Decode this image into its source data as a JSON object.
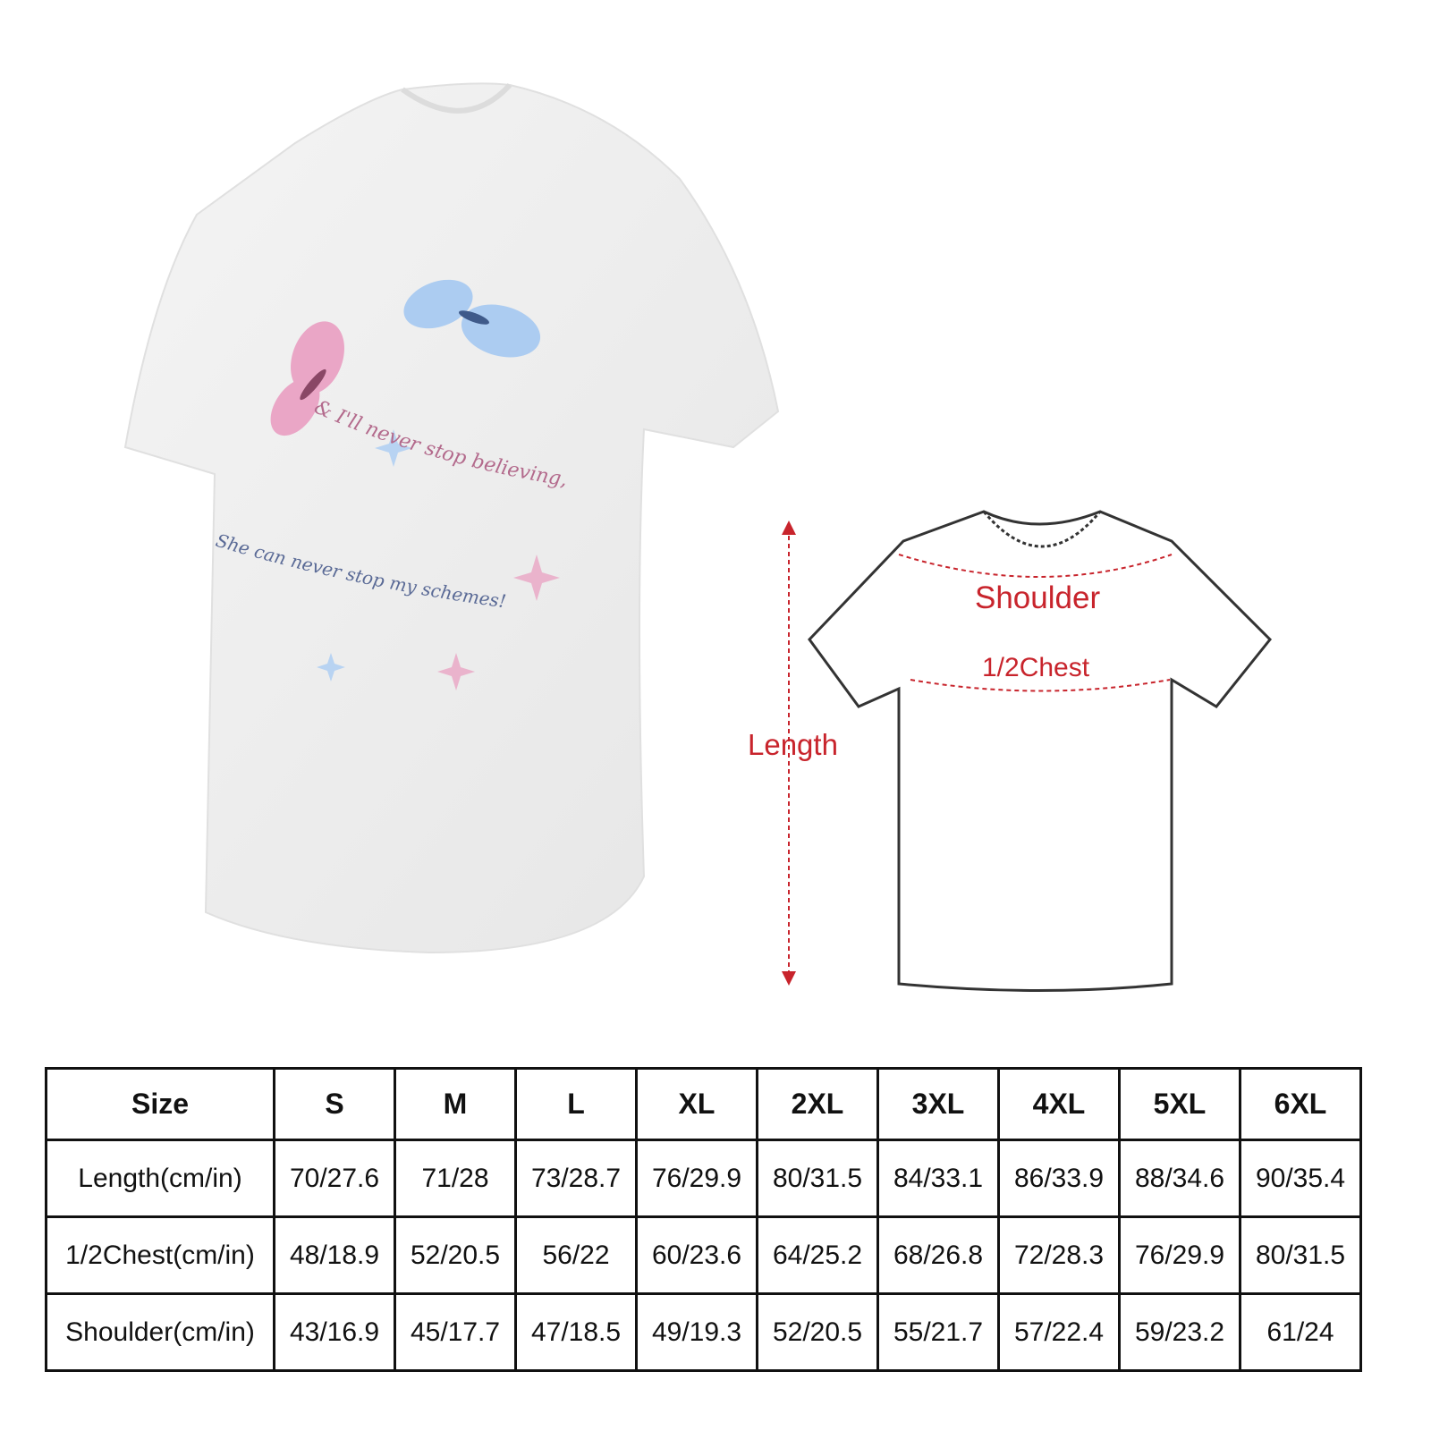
{
  "shirt_print": {
    "line1": "She can never stop my schemes!",
    "line2": "& I'll never stop believing,",
    "colors": {
      "pink": "#e9a3c4",
      "blue": "#a9c9ef",
      "text_blue": "#5a6a96",
      "text_pink": "#b36a8c"
    }
  },
  "diagram": {
    "shoulder_label": "Shoulder",
    "chest_label": "1/2Chest",
    "length_label": "Length",
    "label_color": "#c8242c"
  },
  "size_chart": {
    "headers": [
      "Size",
      "S",
      "M",
      "L",
      "XL",
      "2XL",
      "3XL",
      "4XL",
      "5XL",
      "6XL"
    ],
    "rows": [
      [
        "Length(cm/in)",
        "70/27.6",
        "71/28",
        "73/28.7",
        "76/29.9",
        "80/31.5",
        "84/33.1",
        "86/33.9",
        "88/34.6",
        "90/35.4"
      ],
      [
        "1/2Chest(cm/in)",
        "48/18.9",
        "52/20.5",
        "56/22",
        "60/23.6",
        "64/25.2",
        "68/26.8",
        "72/28.3",
        "76/29.9",
        "80/31.5"
      ],
      [
        "Shoulder(cm/in)",
        "43/16.9",
        "45/17.7",
        "47/18.5",
        "49/19.3",
        "52/20.5",
        "55/21.7",
        "57/22.4",
        "59/23.2",
        "61/24"
      ]
    ]
  }
}
